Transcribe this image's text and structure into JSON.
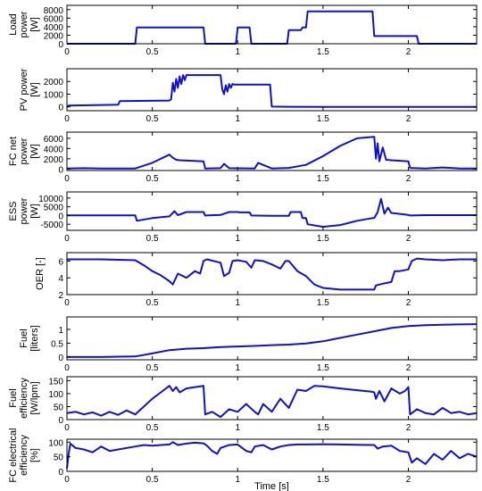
{
  "chart_data": [
    {
      "type": "line",
      "ylabel": [
        "Load",
        "power",
        "[W]"
      ],
      "xlim": [
        0,
        2.4
      ],
      "ylim": [
        0,
        9000
      ],
      "yticks": [
        0,
        2000,
        4000,
        6000,
        8000
      ],
      "xticks": [
        0,
        0.5,
        1,
        1.5,
        2
      ],
      "xtick_labels": [
        "0",
        "0.5",
        "1",
        "1.5",
        "2"
      ],
      "series": [
        {
          "color": "#1010d0",
          "x": [
            0,
            0.4,
            0.41,
            0.8,
            0.81,
            0.99,
            1.0,
            1.07,
            1.08,
            1.29,
            1.3,
            1.37,
            1.38,
            1.4,
            1.41,
            1.79,
            1.8,
            1.99,
            2.0,
            2.05,
            2.06,
            2.4
          ],
          "y": [
            0,
            0,
            3800,
            3800,
            0,
            0,
            3800,
            3800,
            0,
            0,
            3200,
            3200,
            3800,
            3800,
            7600,
            7600,
            1800,
            1800,
            1800,
            1800,
            0,
            0
          ]
        }
      ]
    },
    {
      "type": "line",
      "ylabel": [
        "PV power",
        "[W]"
      ],
      "xlim": [
        0,
        2.4
      ],
      "ylim": [
        -300,
        3000
      ],
      "yticks": [
        0,
        1000,
        2000
      ],
      "xticks": [
        0,
        0.5,
        1,
        1.5,
        2
      ],
      "xtick_labels": [
        "0",
        "0.5",
        "1",
        "1.5",
        "2"
      ],
      "series": [
        {
          "color": "#1010d0",
          "x": [
            0,
            0.01,
            0.2,
            0.3,
            0.31,
            0.6,
            0.61,
            0.62,
            0.63,
            0.64,
            0.65,
            0.66,
            0.67,
            0.68,
            0.69,
            0.7,
            0.9,
            0.91,
            0.92,
            0.93,
            0.94,
            0.95,
            0.96,
            0.97,
            0.98,
            1.19,
            1.2,
            1.3,
            1.5,
            1.7,
            1.9,
            2.1,
            2.4
          ],
          "y": [
            0,
            100,
            150,
            170,
            450,
            500,
            600,
            1900,
            1200,
            2200,
            1500,
            2400,
            1800,
            2500,
            2100,
            2500,
            2500,
            1400,
            1000,
            1700,
            1200,
            1800,
            1500,
            1800,
            1750,
            1750,
            20,
            10,
            0,
            0,
            0,
            0,
            0
          ]
        }
      ]
    },
    {
      "type": "line",
      "ylabel": [
        "FC net",
        "power",
        "[W]"
      ],
      "xlim": [
        0,
        2.4
      ],
      "ylim": [
        -300,
        7200
      ],
      "yticks": [
        0,
        2000,
        4000,
        6000
      ],
      "xticks": [
        0,
        0.5,
        1,
        1.5,
        2
      ],
      "xtick_labels": [
        "0",
        "0.5",
        "1",
        "1.5",
        "2"
      ],
      "series": [
        {
          "color": "#1010d0",
          "x": [
            0,
            0.1,
            0.2,
            0.4,
            0.5,
            0.6,
            0.62,
            0.63,
            0.64,
            0.66,
            0.8,
            0.81,
            0.9,
            0.92,
            0.95,
            1.1,
            1.12,
            1.2,
            1.3,
            1.4,
            1.5,
            1.6,
            1.7,
            1.8,
            1.81,
            1.82,
            1.83,
            1.85,
            1.87,
            1.9,
            2.0,
            2.01,
            2.1,
            2.2,
            2.3,
            2.4
          ],
          "y": [
            100,
            150,
            100,
            100,
            1200,
            2800,
            2200,
            2000,
            1800,
            1700,
            1500,
            100,
            150,
            1000,
            150,
            100,
            1200,
            100,
            200,
            800,
            2500,
            4500,
            6000,
            6300,
            2000,
            5000,
            1500,
            4200,
            1800,
            1700,
            1500,
            200,
            100,
            300,
            100,
            100
          ]
        }
      ]
    },
    {
      "type": "line",
      "ylabel": [
        "ESS",
        "power",
        "[W]"
      ],
      "xlim": [
        0,
        2.4
      ],
      "ylim": [
        -8500,
        13500
      ],
      "yticks": [
        -5000,
        0,
        5000,
        10000
      ],
      "xticks": [
        0,
        0.5,
        1,
        1.5,
        2
      ],
      "xtick_labels": [
        "0",
        "0.5",
        "1",
        "1.5",
        "2"
      ],
      "series": [
        {
          "color": "#1010d0",
          "x": [
            0,
            0.4,
            0.41,
            0.5,
            0.6,
            0.62,
            0.63,
            0.65,
            0.7,
            0.8,
            0.81,
            0.9,
            0.95,
            1.0,
            1.01,
            1.07,
            1.08,
            1.2,
            1.3,
            1.31,
            1.37,
            1.38,
            1.4,
            1.41,
            1.5,
            1.6,
            1.7,
            1.79,
            1.8,
            1.82,
            1.84,
            1.86,
            1.88,
            1.9,
            2.0,
            2.01,
            2.1,
            2.4
          ],
          "y": [
            100,
            100,
            -3000,
            -1500,
            -500,
            1500,
            2500,
            200,
            2000,
            2000,
            0,
            300,
            2000,
            2000,
            1800,
            1800,
            0,
            -200,
            -200,
            2000,
            2000,
            -1500,
            -1500,
            -5000,
            -6500,
            -5500,
            -3000,
            -1500,
            -1500,
            2000,
            9500,
            1000,
            4500,
            1500,
            300,
            0,
            200,
            200
          ]
        }
      ]
    },
    {
      "type": "line",
      "ylabel": [
        "OER [-]"
      ],
      "xlim": [
        0,
        2.4
      ],
      "ylim": [
        2,
        7
      ],
      "yticks": [
        2,
        4,
        6
      ],
      "xticks": [
        0,
        0.5,
        1,
        1.5,
        2
      ],
      "xtick_labels": [
        "0",
        "0.5",
        "1",
        "1.5",
        "2"
      ],
      "series": [
        {
          "color": "#1010d0",
          "x": [
            0,
            0.2,
            0.4,
            0.45,
            0.5,
            0.55,
            0.6,
            0.62,
            0.65,
            0.7,
            0.75,
            0.78,
            0.8,
            0.82,
            0.9,
            0.92,
            0.95,
            0.97,
            1.0,
            1.05,
            1.08,
            1.1,
            1.15,
            1.2,
            1.25,
            1.28,
            1.3,
            1.35,
            1.4,
            1.45,
            1.5,
            1.6,
            1.7,
            1.78,
            1.8,
            1.81,
            1.85,
            1.9,
            1.92,
            1.95,
            2.0,
            2.02,
            2.05,
            2.1,
            2.2,
            2.3,
            2.4
          ],
          "y": [
            6.2,
            6.2,
            6.1,
            5.5,
            4.8,
            4.3,
            3.6,
            3.2,
            4.5,
            4.0,
            4.8,
            4.5,
            6.0,
            6.2,
            5.8,
            4.2,
            4.6,
            6.0,
            6.1,
            5.9,
            5.2,
            6.1,
            6.0,
            5.6,
            5.1,
            6.0,
            6.0,
            4.8,
            4.2,
            3.2,
            2.8,
            2.6,
            2.6,
            2.6,
            2.6,
            3.1,
            3.3,
            3.5,
            4.8,
            4.8,
            5.0,
            6.0,
            6.3,
            6.2,
            6.1,
            6.2,
            6.2
          ]
        }
      ]
    },
    {
      "type": "line",
      "ylabel": [
        "Fuel",
        "[liters]"
      ],
      "xlim": [
        0,
        2.4
      ],
      "ylim": [
        -0.1,
        1.45
      ],
      "yticks": [
        0,
        0.5,
        1
      ],
      "xticks": [
        0,
        0.5,
        1,
        1.5,
        2
      ],
      "xtick_labels": [
        "0",
        "0.5",
        "1",
        "1.5",
        "2"
      ],
      "series": [
        {
          "color": "#1010d0",
          "x": [
            0,
            0.2,
            0.4,
            0.5,
            0.6,
            0.7,
            0.8,
            0.9,
            1.0,
            1.1,
            1.2,
            1.3,
            1.4,
            1.5,
            1.6,
            1.7,
            1.8,
            1.9,
            2.0,
            2.1,
            2.2,
            2.3,
            2.4
          ],
          "y": [
            0,
            0,
            0.02,
            0.13,
            0.25,
            0.3,
            0.32,
            0.36,
            0.38,
            0.4,
            0.43,
            0.45,
            0.49,
            0.57,
            0.69,
            0.81,
            0.93,
            1.05,
            1.12,
            1.15,
            1.17,
            1.18,
            1.19
          ]
        }
      ]
    },
    {
      "type": "line",
      "ylabel": [
        "Fuel",
        "efficiency",
        "[W/lpm]"
      ],
      "xlim": [
        0,
        2.4
      ],
      "ylim": [
        0,
        165
      ],
      "yticks": [
        0,
        50,
        100,
        150
      ],
      "xticks": [
        0,
        0.5,
        1,
        1.5,
        2
      ],
      "xtick_labels": [
        "0",
        "0.5",
        "1",
        "1.5",
        "2"
      ],
      "series": [
        {
          "color": "#1010d0",
          "x": [
            0,
            0.05,
            0.1,
            0.15,
            0.2,
            0.25,
            0.3,
            0.35,
            0.4,
            0.45,
            0.5,
            0.55,
            0.6,
            0.62,
            0.64,
            0.66,
            0.7,
            0.75,
            0.8,
            0.81,
            0.85,
            0.9,
            0.95,
            1.0,
            1.05,
            1.1,
            1.12,
            1.15,
            1.2,
            1.25,
            1.3,
            1.35,
            1.4,
            1.45,
            1.5,
            1.6,
            1.7,
            1.78,
            1.8,
            1.81,
            1.83,
            1.86,
            1.9,
            1.95,
            1.98,
            2.0,
            2.01,
            2.05,
            2.1,
            2.15,
            2.2,
            2.25,
            2.3,
            2.35,
            2.4
          ],
          "y": [
            25,
            30,
            20,
            28,
            15,
            30,
            18,
            35,
            20,
            50,
            80,
            105,
            130,
            110,
            125,
            105,
            120,
            125,
            130,
            20,
            30,
            10,
            40,
            30,
            60,
            30,
            20,
            60,
            30,
            80,
            45,
            115,
            110,
            130,
            128,
            120,
            113,
            108,
            105,
            80,
            110,
            70,
            120,
            100,
            110,
            125,
            20,
            40,
            25,
            20,
            45,
            25,
            30,
            20,
            25
          ]
        }
      ]
    },
    {
      "type": "line",
      "ylabel": [
        "FC electrical",
        "efficiency",
        "[%]"
      ],
      "xlim": [
        0,
        2.4
      ],
      "ylim": [
        0,
        110
      ],
      "yticks": [
        0,
        50,
        100
      ],
      "xticks": [
        0,
        0.5,
        1,
        1.5,
        2
      ],
      "xtick_labels": [
        "0",
        "0.5",
        "1",
        "1.5",
        "2"
      ],
      "xlabel": "Time [s]",
      "series": [
        {
          "color": "#1010d0",
          "x": [
            0,
            0.01,
            0.02,
            0.05,
            0.1,
            0.15,
            0.2,
            0.25,
            0.3,
            0.35,
            0.4,
            0.45,
            0.5,
            0.55,
            0.6,
            0.62,
            0.65,
            0.7,
            0.75,
            0.8,
            0.82,
            0.85,
            0.88,
            0.9,
            0.95,
            1.0,
            1.05,
            1.08,
            1.1,
            1.15,
            1.2,
            1.25,
            1.3,
            1.35,
            1.4,
            1.5,
            1.6,
            1.7,
            1.8,
            1.82,
            1.85,
            1.9,
            1.95,
            2.0,
            2.02,
            2.05,
            2.1,
            2.15,
            2.2,
            2.25,
            2.3,
            2.35,
            2.4
          ],
          "y": [
            10,
            60,
            95,
            80,
            75,
            65,
            85,
            70,
            75,
            80,
            85,
            90,
            88,
            90,
            92,
            100,
            90,
            95,
            98,
            96,
            88,
            70,
            60,
            80,
            90,
            92,
            70,
            65,
            85,
            90,
            75,
            85,
            90,
            92,
            92,
            93,
            92,
            91,
            90,
            78,
            85,
            88,
            70,
            65,
            30,
            45,
            25,
            60,
            40,
            70,
            45,
            60,
            50
          ]
        }
      ]
    }
  ]
}
